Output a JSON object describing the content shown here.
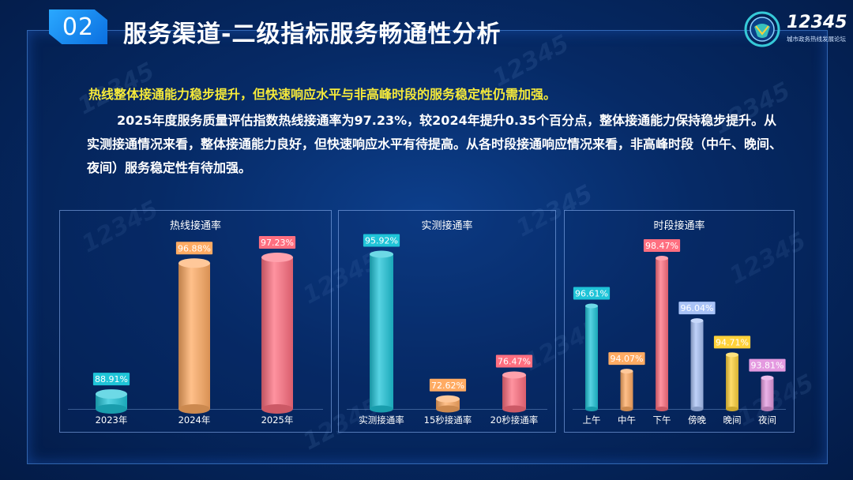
{
  "header": {
    "badge": "02",
    "title": "服务渠道-二级指标服务畅通性分析",
    "logo_text": "12345",
    "logo_sub": "城市政务热线发展论坛"
  },
  "summary": {
    "headline": "热线整体接通能力稳步提升，但快速响应水平与非高峰时段的服务稳定性仍需加强。",
    "paragraph": "2025年度服务质量评估指数热线接通率为97.23%，较2024年提升0.35个百分点，整体接通能力保持稳步提升。从实测接通情况来看，整体接通能力良好，但快速响应水平有待提高。从各时段接通响应情况来看，非高峰时段（中午、晚间、夜间）服务稳定性有待加强。"
  },
  "colors": {
    "cyan": "#1fc4d8",
    "orange": "#ffab63",
    "pink": "#ff6f80",
    "lavender": "#a9c3f7",
    "yellow": "#ffd23a",
    "violet": "#e49ae0"
  },
  "chart_data": [
    {
      "type": "bar",
      "title": "热线接通率",
      "categories": [
        "2023年",
        "2024年",
        "2025年"
      ],
      "values": [
        88.91,
        96.88,
        97.23
      ],
      "labels": [
        "88.91%",
        "96.88%",
        "97.23%"
      ],
      "colors": [
        "cyan",
        "orange",
        "pink"
      ]
    },
    {
      "type": "bar",
      "title": "实测接通率",
      "categories": [
        "实测接通率",
        "15秒接通率",
        "20秒接通率"
      ],
      "values": [
        95.92,
        72.62,
        76.47
      ],
      "labels": [
        "95.92%",
        "72.62%",
        "76.47%"
      ],
      "colors": [
        "cyan",
        "orange",
        "pink"
      ]
    },
    {
      "type": "bar",
      "title": "时段接通率",
      "categories": [
        "上午",
        "中午",
        "下午",
        "傍晚",
        "晚间",
        "夜间"
      ],
      "values": [
        96.61,
        94.07,
        98.47,
        96.04,
        94.71,
        93.81
      ],
      "labels": [
        "96.61%",
        "94.07%",
        "98.47%",
        "96.04%",
        "94.71%",
        "93.81%"
      ],
      "colors": [
        "cyan",
        "orange",
        "pink",
        "lavender",
        "yellow",
        "violet"
      ]
    }
  ]
}
